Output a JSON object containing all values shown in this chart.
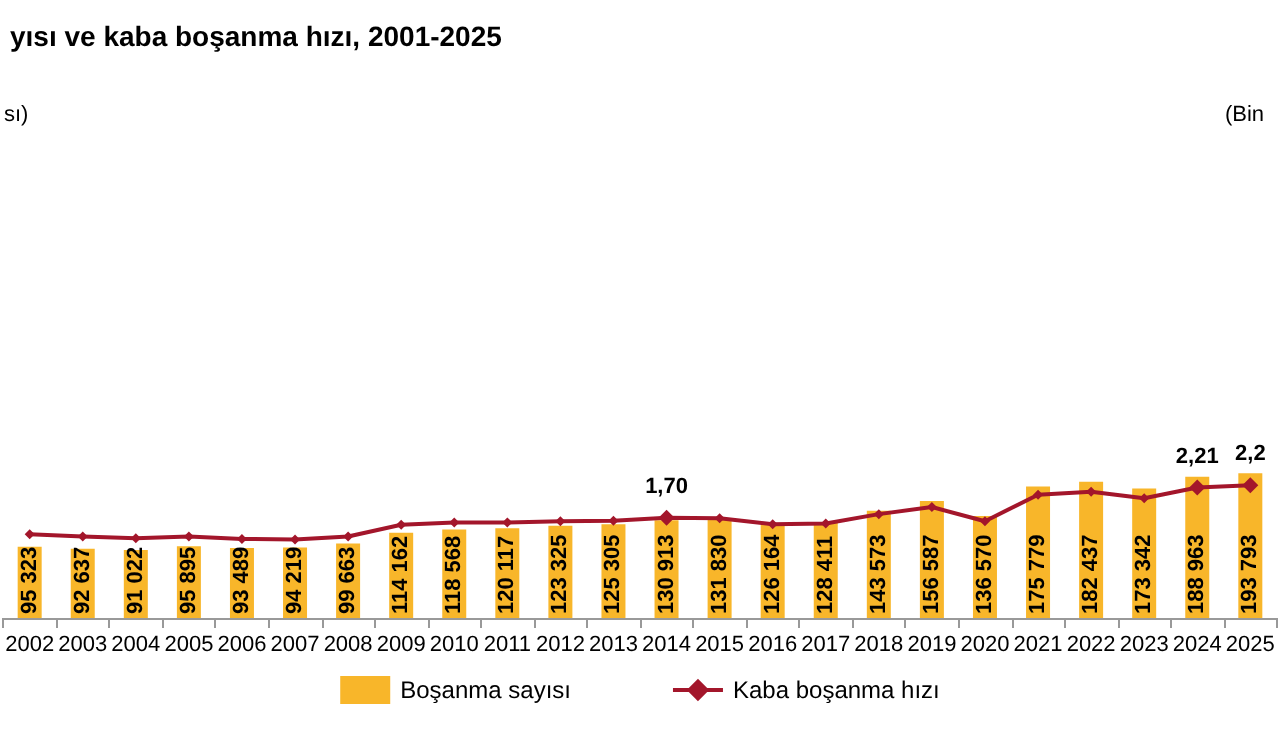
{
  "chart_data": {
    "type": "bar",
    "title": "yısı ve kaba boşanma hızı, 2001-2025",
    "annotations": [
      "sı)",
      "(Bin"
    ],
    "categories": [
      "2002",
      "2003",
      "2004",
      "2005",
      "2006",
      "2007",
      "2008",
      "2009",
      "2010",
      "2011",
      "2012",
      "2013",
      "2014",
      "2015",
      "2016",
      "2017",
      "2018",
      "2019",
      "2020",
      "2021",
      "2022",
      "2023",
      "2024",
      "2025"
    ],
    "series": [
      {
        "name": "Boşanma sayısı",
        "color": "#f8b62a",
        "values": [
          95323,
          92637,
          91022,
          95895,
          93489,
          94219,
          99663,
          114162,
          118568,
          120117,
          123325,
          125305,
          130913,
          131830,
          126164,
          128411,
          143573,
          156587,
          136570,
          175779,
          182437,
          173342,
          188963,
          193793
        ],
        "value_labels": [
          "95 323",
          "92 637",
          "91 022",
          "95 895",
          "93 489",
          "94 219",
          "99 663",
          "114 162",
          "118 568",
          "120 117",
          "123 325",
          "125 305",
          "130 913",
          "131 830",
          "126 164",
          "128 411",
          "143 573",
          "156 587",
          "136 570",
          "175 779",
          "182 437",
          "173 342",
          "188 963",
          "193 793"
        ]
      },
      {
        "name": "Kaba boşanma hızı",
        "type": "line",
        "axis": "y2",
        "color": "#a3162b",
        "marker": "diamond",
        "values": [
          1.42,
          1.38,
          1.35,
          1.38,
          1.34,
          1.33,
          1.38,
          1.58,
          1.62,
          1.62,
          1.64,
          1.65,
          1.7,
          1.69,
          1.59,
          1.6,
          1.76,
          1.88,
          1.64,
          2.09,
          2.14,
          2.03,
          2.21,
          2.25
        ],
        "value_labels": [
          null,
          null,
          null,
          null,
          null,
          null,
          null,
          null,
          null,
          null,
          null,
          null,
          "1,70",
          null,
          null,
          null,
          null,
          null,
          null,
          null,
          null,
          null,
          "2,21",
          "2,2"
        ]
      }
    ],
    "legend": "bottom",
    "grid": false
  }
}
